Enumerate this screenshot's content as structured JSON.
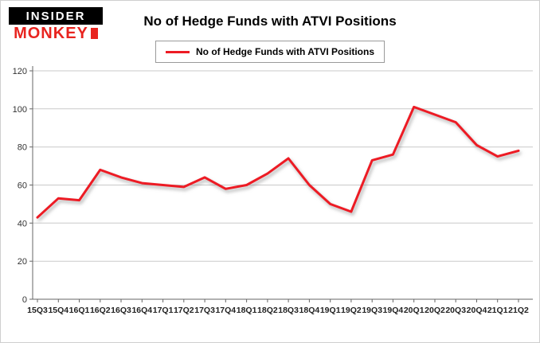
{
  "logo": {
    "line1": "INSIDER",
    "line2": "MONKEY"
  },
  "title": "No of Hedge Funds with ATVI Positions",
  "legend": {
    "label": "No of Hedge Funds with ATVI Positions",
    "color": "#ed1b24"
  },
  "chart_data": {
    "type": "line",
    "title": "No of Hedge Funds with ATVI Positions",
    "categories": [
      "15Q3",
      "15Q4",
      "16Q1",
      "16Q2",
      "16Q3",
      "16Q4",
      "17Q1",
      "17Q2",
      "17Q3",
      "17Q4",
      "18Q1",
      "18Q2",
      "18Q3",
      "18Q4",
      "19Q1",
      "19Q2",
      "19Q3",
      "19Q4",
      "20Q1",
      "20Q2",
      "20Q3",
      "20Q4",
      "21Q1",
      "21Q2"
    ],
    "values": [
      43,
      53,
      52,
      68,
      64,
      61,
      60,
      59,
      64,
      58,
      60,
      66,
      74,
      60,
      50,
      46,
      73,
      76,
      101,
      97,
      93,
      81,
      75,
      78
    ],
    "xlabel": "",
    "ylabel": "",
    "ylim": [
      0,
      120
    ],
    "yticks": [
      0,
      20,
      40,
      60,
      80,
      100,
      120
    ],
    "grid": true,
    "line_color": "#ed1b24",
    "legend_position": "top"
  }
}
